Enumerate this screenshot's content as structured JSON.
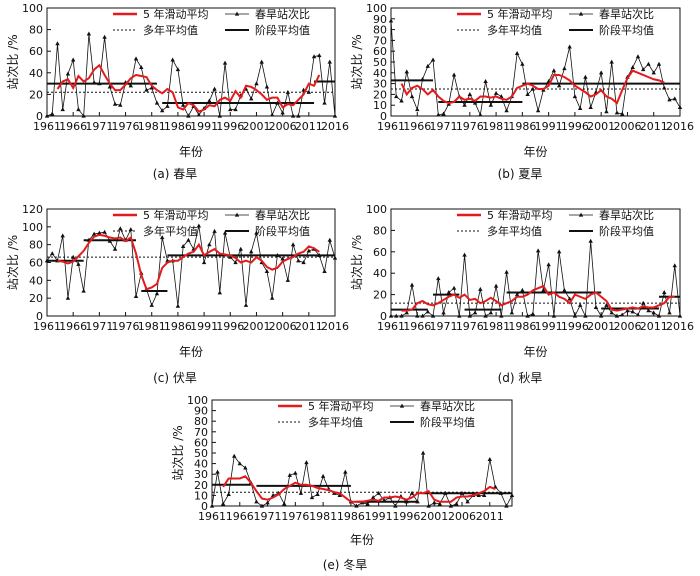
{
  "legend_labels": {
    "moving_avg": "5 年滑动平均",
    "ratio": "春旱站次比",
    "long_term_avg": "多年平均值",
    "stage_avg": "阶段平均值"
  },
  "colors": {
    "moving_avg": "#e41a1c",
    "line": "#111111"
  },
  "chart_data": [
    {
      "id": "a",
      "type": "line",
      "caption": "(a)  春旱",
      "xlabel": "年份",
      "ylabel": "站次比 /%",
      "ylim": [
        0,
        100
      ],
      "yticks": [
        0,
        20,
        40,
        60,
        80,
        100
      ],
      "xticks": [
        1961,
        1966,
        1971,
        1976,
        1981,
        1986,
        1991,
        1996,
        2001,
        2006,
        2011,
        2016
      ],
      "x_range": [
        1961,
        2016
      ],
      "ratio": [
        0,
        2,
        67,
        6,
        39,
        52,
        6,
        0,
        76,
        31,
        30,
        73,
        27,
        11,
        10,
        31,
        28,
        53,
        45,
        24,
        26,
        12,
        5,
        9,
        52,
        43,
        10,
        0,
        9,
        1,
        7,
        14,
        25,
        0,
        49,
        6,
        6,
        19,
        25,
        16,
        30,
        50,
        27,
        1,
        12,
        3,
        22,
        0,
        0,
        24,
        22,
        55,
        56,
        12,
        50,
        0
      ],
      "moving_avg": [
        null,
        null,
        25,
        32,
        34,
        26,
        37,
        32,
        35,
        43,
        47,
        38,
        30,
        24,
        24,
        29,
        35,
        38,
        37,
        36,
        28,
        24,
        21,
        25,
        22,
        8,
        6,
        12,
        10,
        4,
        6,
        10,
        9,
        15,
        17,
        14,
        23,
        17,
        28,
        27,
        24,
        20,
        15,
        17,
        17,
        8,
        11,
        10,
        15,
        20,
        30,
        28,
        38,
        null,
        null,
        null
      ],
      "long_term_avg": 22,
      "stages": [
        {
          "from": 1961,
          "to": 1982,
          "value": 30
        },
        {
          "from": 1983,
          "to": 2012,
          "value": 12
        },
        {
          "from": 2012,
          "to": 2016,
          "value": 32
        }
      ],
      "grid": false,
      "legend": "top"
    },
    {
      "id": "b",
      "type": "line",
      "caption": "(b)  夏旱",
      "xlabel": "年份",
      "ylabel": "站次比 /%",
      "ylim": [
        0,
        100
      ],
      "yticks": [
        0,
        10,
        20,
        30,
        40,
        50,
        60,
        70,
        80,
        90,
        100
      ],
      "xticks": [
        1961,
        1966,
        1971,
        1976,
        1981,
        1986,
        1991,
        1996,
        2001,
        2006,
        2011,
        2016
      ],
      "x_range": [
        1961,
        2016
      ],
      "ratio": [
        88,
        18,
        14,
        41,
        18,
        6,
        34,
        46,
        52,
        1,
        2,
        11,
        38,
        18,
        10,
        20,
        12,
        1,
        32,
        10,
        21,
        18,
        5,
        18,
        58,
        48,
        20,
        25,
        5,
        24,
        32,
        42,
        28,
        44,
        64,
        18,
        7,
        36,
        8,
        22,
        40,
        4,
        50,
        3,
        2,
        36,
        45,
        55,
        43,
        48,
        40,
        48,
        26,
        15,
        16,
        8
      ],
      "moving_avg": [
        null,
        null,
        30,
        20,
        26,
        28,
        25,
        20,
        24,
        18,
        14,
        12,
        13,
        18,
        15,
        16,
        14,
        18,
        18,
        17,
        18,
        16,
        15,
        18,
        26,
        28,
        30,
        28,
        25,
        25,
        28,
        38,
        38,
        36,
        33,
        28,
        25,
        22,
        18,
        20,
        24,
        18,
        16,
        12,
        24,
        35,
        42,
        40,
        38,
        36,
        34,
        33,
        31,
        null,
        null,
        null
      ],
      "long_term_avg": 25,
      "stages": [
        {
          "from": 1961,
          "to": 1969,
          "value": 33
        },
        {
          "from": 1970,
          "to": 1986,
          "value": 13
        },
        {
          "from": 1986,
          "to": 2016,
          "value": 30
        }
      ],
      "grid": false,
      "legend": "top"
    },
    {
      "id": "c",
      "type": "line",
      "caption": "(c)  伏旱",
      "xlabel": "年份",
      "ylabel": "站次比 /%",
      "ylim": [
        0,
        120
      ],
      "yticks": [
        0,
        20,
        40,
        60,
        80,
        100,
        120
      ],
      "xticks": [
        1961,
        1966,
        1971,
        1976,
        1981,
        1986,
        1991,
        1996,
        2001,
        2006,
        2011,
        2016
      ],
      "x_range": [
        1961,
        2016
      ],
      "ratio": [
        62,
        70,
        62,
        90,
        20,
        66,
        58,
        28,
        85,
        92,
        93,
        94,
        84,
        75,
        98,
        85,
        97,
        22,
        48,
        30,
        12,
        25,
        88,
        62,
        62,
        11,
        78,
        85,
        75,
        101,
        60,
        80,
        95,
        26,
        93,
        66,
        60,
        75,
        12,
        72,
        93,
        60,
        50,
        20,
        68,
        64,
        40,
        80,
        62,
        60,
        73,
        75,
        68,
        50,
        85,
        65
      ],
      "moving_avg": [
        null,
        null,
        62,
        61,
        59,
        61,
        67,
        73,
        82,
        89,
        91,
        90,
        88,
        87,
        88,
        84,
        88,
        70,
        46,
        30,
        32,
        36,
        54,
        60,
        62,
        62,
        66,
        70,
        72,
        80,
        68,
        72,
        75,
        70,
        69,
        68,
        65,
        60,
        62,
        60,
        66,
        62,
        55,
        52,
        54,
        61,
        64,
        66,
        70,
        72,
        78,
        76,
        72,
        null,
        null,
        null
      ],
      "long_term_avg": 66,
      "stages": [
        {
          "from": 1961,
          "to": 1968,
          "value": 62
        },
        {
          "from": 1968,
          "to": 1978,
          "value": 85
        },
        {
          "from": 1979,
          "to": 1984,
          "value": 28
        },
        {
          "from": 1984,
          "to": 2016,
          "value": 68
        }
      ],
      "grid": false,
      "legend": "top"
    },
    {
      "id": "d",
      "type": "line",
      "caption": "(d)  秋旱",
      "xlabel": "年份",
      "ylabel": "站次比 /%",
      "ylim": [
        0,
        100
      ],
      "yticks": [
        0,
        20,
        40,
        60,
        80,
        100
      ],
      "xticks": [
        1961,
        1966,
        1971,
        1976,
        1981,
        1986,
        1991,
        1996,
        2001,
        2006,
        2011,
        2016
      ],
      "x_range": [
        1961,
        2016
      ],
      "ratio": [
        0,
        0,
        0,
        3,
        29,
        0,
        0,
        4,
        0,
        35,
        3,
        22,
        26,
        0,
        57,
        0,
        3,
        25,
        0,
        3,
        28,
        0,
        41,
        3,
        20,
        24,
        0,
        2,
        61,
        24,
        48,
        0,
        60,
        24,
        16,
        0,
        10,
        0,
        70,
        8,
        0,
        10,
        3,
        0,
        1,
        5,
        4,
        1,
        12,
        5,
        3,
        0,
        22,
        3,
        47,
        0
      ],
      "moving_avg": [
        null,
        null,
        5,
        5,
        6,
        12,
        14,
        11,
        10,
        12,
        15,
        18,
        20,
        17,
        20,
        15,
        16,
        12,
        14,
        17,
        14,
        10,
        12,
        14,
        18,
        18,
        20,
        24,
        26,
        28,
        20,
        22,
        18,
        16,
        12,
        20,
        18,
        16,
        20,
        22,
        18,
        14,
        6,
        5,
        6,
        7,
        8,
        7,
        9,
        8,
        8,
        10,
        12,
        18,
        18,
        null
      ],
      "long_term_avg": 12,
      "stages": [
        {
          "from": 1961,
          "to": 1968,
          "value": 6
        },
        {
          "from": 1969,
          "to": 1974,
          "value": 20
        },
        {
          "from": 1975,
          "to": 1982,
          "value": 6
        },
        {
          "from": 1983,
          "to": 2001,
          "value": 22
        },
        {
          "from": 2001,
          "to": 2012,
          "value": 7
        },
        {
          "from": 2012,
          "to": 2016,
          "value": 18
        }
      ],
      "grid": false,
      "legend": "top"
    },
    {
      "id": "e",
      "type": "line",
      "caption": "(e)  冬旱",
      "xlabel": "年份",
      "ylabel": "站次比 /%",
      "ylim": [
        0,
        100
      ],
      "yticks": [
        0,
        10,
        20,
        30,
        40,
        50,
        60,
        70,
        80,
        90,
        100
      ],
      "xticks": [
        1961,
        1966,
        1971,
        1976,
        1981,
        1986,
        1991,
        1996,
        2001,
        2006,
        2011
      ],
      "x_range": [
        1961,
        2015
      ],
      "ratio": [
        0,
        32,
        2,
        11,
        47,
        40,
        36,
        22,
        4,
        0,
        3,
        10,
        12,
        2,
        29,
        31,
        12,
        41,
        8,
        11,
        28,
        16,
        12,
        10,
        32,
        4,
        0,
        3,
        2,
        8,
        12,
        5,
        8,
        0,
        9,
        4,
        12,
        4,
        50,
        0,
        3,
        2,
        12,
        0,
        2,
        12,
        4,
        10,
        10,
        10,
        44,
        18,
        12,
        0,
        10
      ],
      "moving_avg": [
        null,
        null,
        18,
        26,
        26,
        26,
        28,
        22,
        14,
        7,
        6,
        8,
        11,
        16,
        19,
        22,
        20,
        20,
        19,
        17,
        16,
        15,
        13,
        12,
        8,
        4,
        4,
        4,
        5,
        6,
        5,
        8,
        8,
        9,
        8,
        6,
        8,
        12,
        12,
        14,
        6,
        4,
        4,
        4,
        8,
        9,
        9,
        10,
        12,
        14,
        18,
        16,
        null,
        null,
        null
      ],
      "long_term_avg": 13,
      "stages": [
        {
          "from": 1961,
          "to": 1968,
          "value": 20
        },
        {
          "from": 1969,
          "to": 1986,
          "value": 19
        },
        {
          "from": 1987,
          "to": 1998,
          "value": 4
        },
        {
          "from": 1999,
          "to": 2015,
          "value": 12
        }
      ],
      "grid": false,
      "legend": "top"
    }
  ]
}
